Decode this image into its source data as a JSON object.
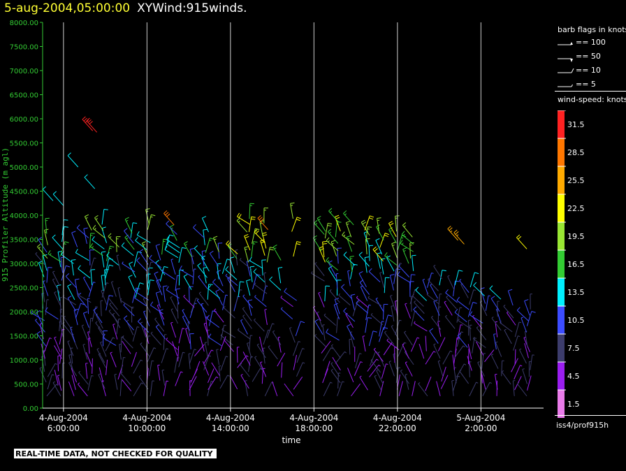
{
  "header": {
    "time": "5-aug-2004,05:00:00",
    "plot_name": "XYWind:915winds."
  },
  "chart_data": {
    "type": "scatter",
    "ylabel": "915 Profiler Altitude (m agl)",
    "xlabel": "time",
    "ylim": [
      0,
      8000
    ],
    "yticks": [
      "0.00",
      "500.00",
      "1000.00",
      "1500.00",
      "2000.00",
      "2500.00",
      "3000.00",
      "3500.00",
      "4000.00",
      "4500.00",
      "5000.00",
      "5500.00",
      "6000.00",
      "6500.00",
      "7000.00",
      "7500.00",
      "8000.00"
    ],
    "xticks": [
      {
        "date": "4-Aug-2004",
        "time": "6:00:00"
      },
      {
        "date": "4-Aug-2004",
        "time": "10:00:00"
      },
      {
        "date": "4-Aug-2004",
        "time": "14:00:00"
      },
      {
        "date": "4-Aug-2004",
        "time": "18:00:00"
      },
      {
        "date": "4-Aug-2004",
        "time": "22:00:00"
      },
      {
        "date": "5-Aug-2004",
        "time": "2:00:00"
      }
    ],
    "x_start": "4-Aug-2004 05:00:00",
    "x_end": "5-Aug-2004 05:00:00",
    "grid": "vertical lines at hour ticks",
    "color_scale_knots": [
      1.5,
      4.5,
      7.5,
      10.5,
      13.5,
      16.5,
      19.5,
      22.5,
      25.5,
      28.5,
      31.5
    ],
    "wind_barbs": "vertical profiles of wind barbs at about 0.7 h intervals, 200 m to 4000 m agl, sparse returns up to 5800 m"
  },
  "legend": {
    "barb_title": "barb flags in knots",
    "barbs": [
      "== 100",
      "== 50",
      "== 10",
      "== 5"
    ],
    "speed_title": "wind-speed: knots",
    "colors": [
      "#e97be9",
      "#9a1ef0",
      "#3c3c6c",
      "#3c4cff",
      "#00f0ff",
      "#33cc33",
      "#99e633",
      "#ffff00",
      "#ffaa00",
      "#ff7700",
      "#ff2222"
    ]
  },
  "source": "iss4/prof915h",
  "footnote": "REAL-TIME DATA, NOT CHECKED FOR QUALITY"
}
